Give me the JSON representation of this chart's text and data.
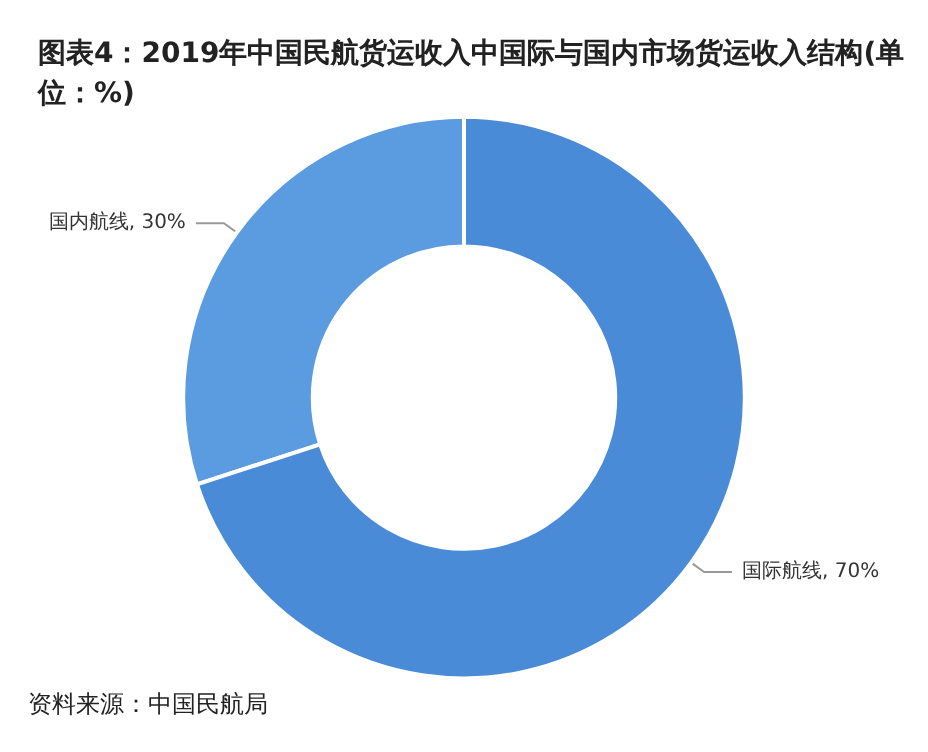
{
  "chart_data": {
    "type": "donut",
    "title": "图表4：2019年中国民航货运收入中国际与国内市场货运收入结构(单位：%)",
    "categories": [
      "国内航线",
      "国际航线"
    ],
    "values": [
      30,
      70
    ],
    "colors": [
      "#5b9be0",
      "#4a8bd8"
    ],
    "value_labels": [
      "30%",
      "70%"
    ],
    "annotations": [
      "资料来源：中国民航局"
    ],
    "legend": false
  }
}
